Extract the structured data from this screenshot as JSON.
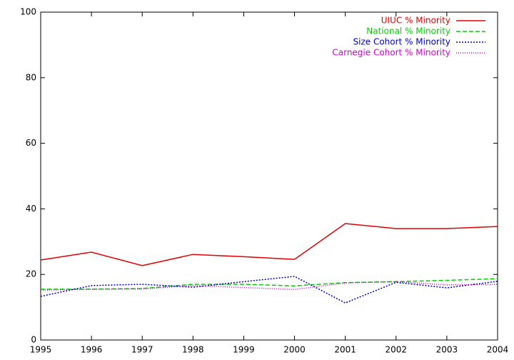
{
  "chart_data": {
    "type": "line",
    "x": [
      1995,
      1996,
      1997,
      1998,
      1999,
      2000,
      2001,
      2002,
      2003,
      2004
    ],
    "series": [
      {
        "name": "UIUC % Minority",
        "color": "#e00000",
        "dash": "solid",
        "values": [
          24.4,
          26.8,
          22.7,
          26.1,
          25.4,
          24.6,
          35.5,
          34,
          34,
          34.6
        ]
      },
      {
        "name": "National % Minority",
        "color": "#00d000",
        "dash": "dashed",
        "values": [
          15.5,
          15.5,
          15.7,
          17,
          17,
          16.5,
          17.5,
          17.8,
          18.2,
          18.7
        ]
      },
      {
        "name": "Size Cohort % Minority",
        "color": "#0000d0",
        "dash": "dotted",
        "values": [
          13.3,
          16.6,
          17,
          16.1,
          17.8,
          19.4,
          11.3,
          17.6,
          15.9,
          17.9
        ]
      },
      {
        "name": "Carnegie Cohort % Minority",
        "color": "#d000d0",
        "dash": "fine-dotted",
        "values": [
          15.2,
          15.5,
          15.6,
          16.6,
          16,
          15.4,
          17.4,
          17.8,
          16.8,
          17
        ]
      }
    ],
    "xlim": [
      1995,
      2004
    ],
    "xticks": [
      1995,
      1996,
      1997,
      1998,
      1999,
      2000,
      2001,
      2002,
      2003,
      2004
    ],
    "ylim": [
      0,
      100
    ],
    "yticks": [
      0,
      20,
      40,
      60,
      80,
      100
    ],
    "grid": false,
    "legend": "top-right"
  }
}
